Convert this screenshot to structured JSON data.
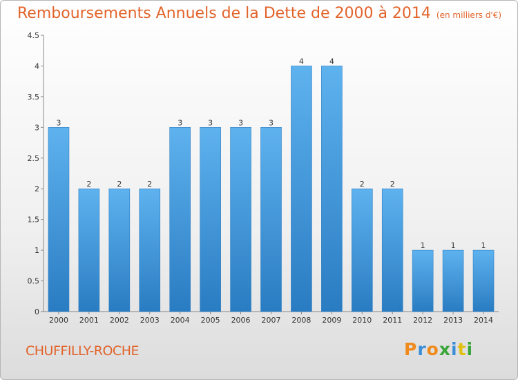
{
  "chart_data": {
    "type": "bar",
    "title": "Remboursements Annuels de la Dette de 2000 à 2014",
    "subtitle": "(en milliers d'€)",
    "categories": [
      "2000",
      "2001",
      "2002",
      "2003",
      "2004",
      "2005",
      "2006",
      "2007",
      "2008",
      "2009",
      "2010",
      "2011",
      "2012",
      "2013",
      "2014"
    ],
    "values": [
      3,
      2,
      2,
      2,
      3,
      3,
      3,
      3,
      4,
      4,
      2,
      2,
      1,
      1,
      1
    ],
    "value_labels": [
      "3",
      "2",
      "2",
      "2",
      "3",
      "3",
      "3",
      "3",
      "4",
      "4",
      "2",
      "2",
      "1",
      "1",
      "1"
    ],
    "ylim": [
      0,
      4.5
    ],
    "yticks": [
      "0",
      "0.5",
      "1",
      "1.5",
      "2",
      "2.5",
      "3",
      "3.5",
      "4",
      "4.5"
    ],
    "grid": false,
    "bar_color": "#4a9fe0"
  },
  "footer": {
    "commune": "CHUFFILLY-ROCHE",
    "brand_letters": [
      "P",
      "r",
      "o",
      "x",
      "i",
      "t",
      "i"
    ],
    "brand_colors": [
      "#f08a1c",
      "#3b8fd9",
      "#f08a1c",
      "#3aa63a",
      "#3b8fd9",
      "#e0c010",
      "#3aa63a"
    ]
  },
  "colors": {
    "accent": "#e2632a"
  }
}
